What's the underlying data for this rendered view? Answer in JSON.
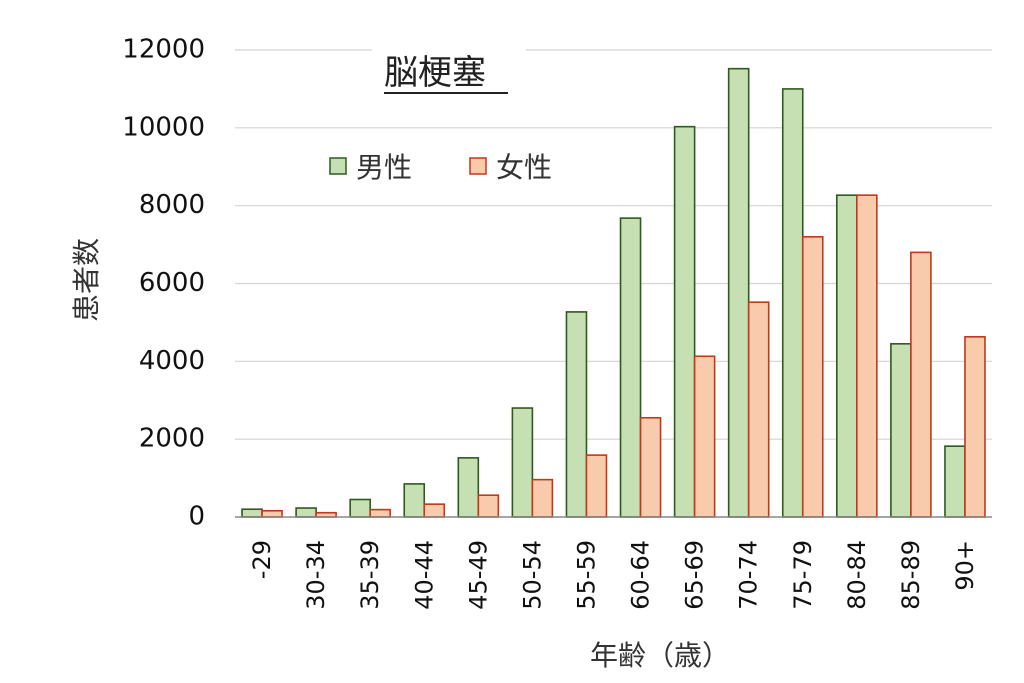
{
  "chart_data": {
    "type": "bar",
    "title": "脳梗塞",
    "xlabel": "年齢（歳）",
    "ylabel": "患者数",
    "ylim": [
      0,
      12000
    ],
    "yticks": [
      0,
      2000,
      4000,
      6000,
      8000,
      10000,
      12000
    ],
    "grid": true,
    "legend_position": "top-left",
    "categories": [
      "-29",
      "30-34",
      "35-39",
      "40-44",
      "45-49",
      "50-54",
      "55-59",
      "60-64",
      "65-69",
      "70-74",
      "75-79",
      "80-84",
      "85-89",
      "90+"
    ],
    "series": [
      {
        "name": "男性",
        "fill": "#c6e0b4",
        "stroke": "#2e5a1c",
        "values": [
          200,
          230,
          450,
          850,
          1520,
          2800,
          5270,
          7680,
          10030,
          11520,
          11000,
          8270,
          4450,
          1820
        ]
      },
      {
        "name": "女性",
        "fill": "#f8cbad",
        "stroke": "#c0391b",
        "values": [
          160,
          110,
          190,
          330,
          560,
          960,
          1590,
          2550,
          4130,
          5520,
          7200,
          8270,
          6800,
          4630
        ]
      }
    ]
  }
}
